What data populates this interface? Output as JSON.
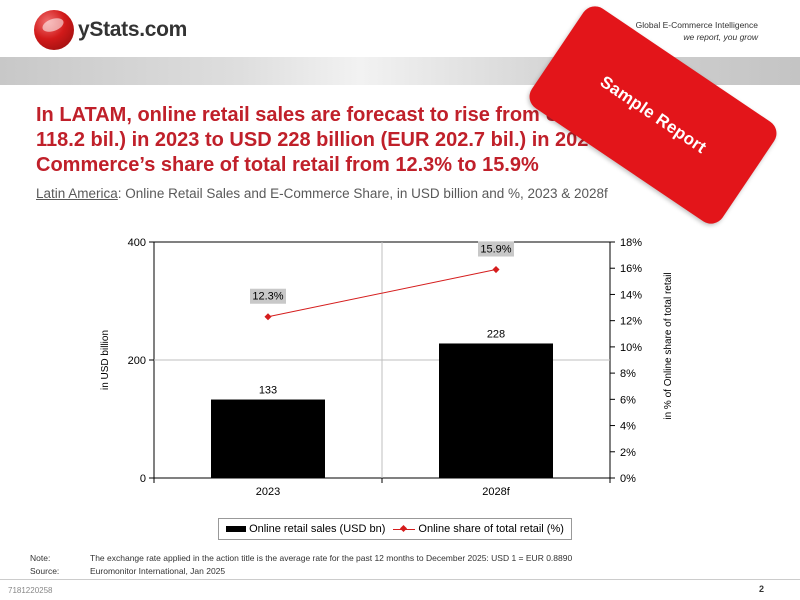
{
  "header": {
    "logo_text": "yStats.com",
    "tagline_line1": "Global E-Commerce Intelligence",
    "tagline_line2": "we report, you grow"
  },
  "headline": "In LATAM, online retail sales are forecast to rise from USD 133 billion (EUR 118.2 bil.) in 2023 to USD 228 billion (EUR 202.7 bil.) in 2028, increasing E-Commerce’s share of total retail from 12.3% to 15.9%",
  "subtitle": {
    "region": "Latin America",
    "text": ": Online Retail Sales and E-Commerce Share, in USD billion and %, 2023 & 2028f"
  },
  "stamp": {
    "text": "Sample Report",
    "color": "#e3151a"
  },
  "chart_data": {
    "type": "bar",
    "categories": [
      "2023",
      "2028f"
    ],
    "series": [
      {
        "name": "Online retail sales (USD bn)",
        "type": "bar",
        "axis": "left",
        "values": [
          133,
          228
        ],
        "labels": [
          "133",
          "228"
        ],
        "color": "#000000"
      },
      {
        "name": "Online share of total retail (%)",
        "type": "line",
        "axis": "right",
        "values": [
          12.3,
          15.9
        ],
        "labels": [
          "12.3%",
          "15.9%"
        ],
        "color": "#d51d1d"
      }
    ],
    "ylabel": "in USD billion",
    "ylim": [
      0,
      400
    ],
    "y_ticks": [
      0,
      200,
      400
    ],
    "y_tick_labels": [
      "0",
      "200",
      "400"
    ],
    "y2label": "in % of Online share of total retail",
    "y2lim": [
      0,
      18
    ],
    "y2_ticks": [
      0,
      2,
      4,
      6,
      8,
      10,
      12,
      14,
      16,
      18
    ],
    "y2_tick_labels": [
      "0%",
      "2%",
      "4%",
      "6%",
      "8%",
      "10%",
      "12%",
      "14%",
      "16%",
      "18%"
    ],
    "grid": true,
    "legend_position": "bottom"
  },
  "notes": {
    "note_label": "Note:",
    "note_text": "The exchange rate applied in the action title is the average rate for the past 12 months to December 2025: USD 1 = EUR 0.8890",
    "source_label": "Source:",
    "source_text": "Euromonitor International, Jan 2025"
  },
  "footer": {
    "doc_id": "7181220258",
    "page_number": "2"
  }
}
